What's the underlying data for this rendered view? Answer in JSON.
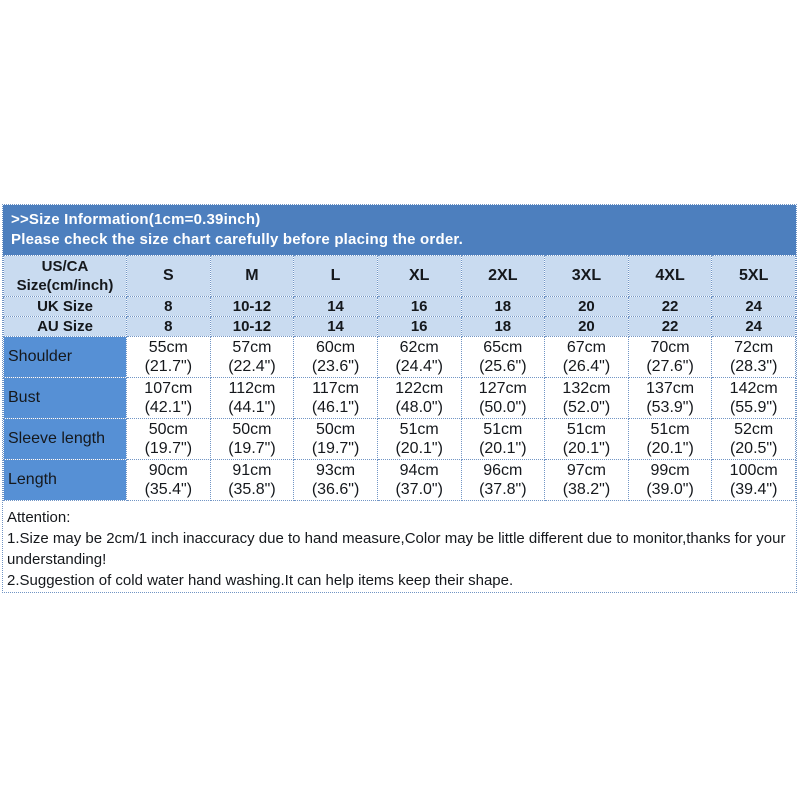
{
  "colors": {
    "banner_bg": "#4d7fbe",
    "banner_text": "#ffffff",
    "header_row_bg": "#c9dbf0",
    "label_column_bg": "#5690d5",
    "cell_border": "#7195c5",
    "text": "#15181c",
    "page_bg": "#ffffff"
  },
  "chart_data": {
    "type": "table",
    "title": ">>Size Information(1cm=0.39inch)",
    "subtitle": "Please check the size chart carefully before placing the order.",
    "corner_header": "US/CA\nSize(cm/inch)",
    "size_columns": [
      "S",
      "M",
      "L",
      "XL",
      "2XL",
      "3XL",
      "4XL",
      "5XL"
    ],
    "rows": [
      {
        "label": "UK Size",
        "kind": "size",
        "values": [
          "8",
          "10-12",
          "14",
          "16",
          "18",
          "20",
          "22",
          "24"
        ]
      },
      {
        "label": "AU Size",
        "kind": "size",
        "values": [
          "8",
          "10-12",
          "14",
          "16",
          "18",
          "20",
          "22",
          "24"
        ]
      },
      {
        "label": "Shoulder",
        "kind": "measurement",
        "values": [
          "55cm\n(21.7\")",
          "57cm\n(22.4\")",
          "60cm\n(23.6\")",
          "62cm\n(24.4\")",
          "65cm\n(25.6\")",
          "67cm\n(26.4\")",
          "70cm\n(27.6\")",
          "72cm\n(28.3\")"
        ]
      },
      {
        "label": "Bust",
        "kind": "measurement",
        "values": [
          "107cm\n(42.1\")",
          "112cm\n(44.1\")",
          "117cm\n(46.1\")",
          "122cm\n(48.0\")",
          "127cm\n(50.0\")",
          "132cm\n(52.0\")",
          "137cm\n(53.9\")",
          "142cm\n(55.9\")"
        ]
      },
      {
        "label": "Sleeve length",
        "kind": "measurement",
        "values": [
          "50cm\n(19.7\")",
          "50cm\n(19.7\")",
          "50cm\n(19.7\")",
          "51cm\n(20.1\")",
          "51cm\n(20.1\")",
          "51cm\n(20.1\")",
          "51cm\n(20.1\")",
          "52cm\n(20.5\")"
        ]
      },
      {
        "label": "Length",
        "kind": "measurement",
        "values": [
          "90cm\n(35.4\")",
          "91cm\n(35.8\")",
          "93cm\n(36.6\")",
          "94cm\n(37.0\")",
          "96cm\n(37.8\")",
          "97cm\n(38.2\")",
          "99cm\n(39.0\")",
          "100cm\n(39.4\")"
        ]
      }
    ],
    "notes_title": "Attention:",
    "layout": {
      "grid": "dotted-blue-borders",
      "legend": "none"
    }
  },
  "attention": {
    "heading": "Attention:",
    "notes": [
      "1.Size may be 2cm/1 inch inaccuracy due to hand measure,Color may be little different due to monitor,thanks for your understanding!",
      "2.Suggestion of cold water hand washing.It can help items keep their shape."
    ]
  }
}
